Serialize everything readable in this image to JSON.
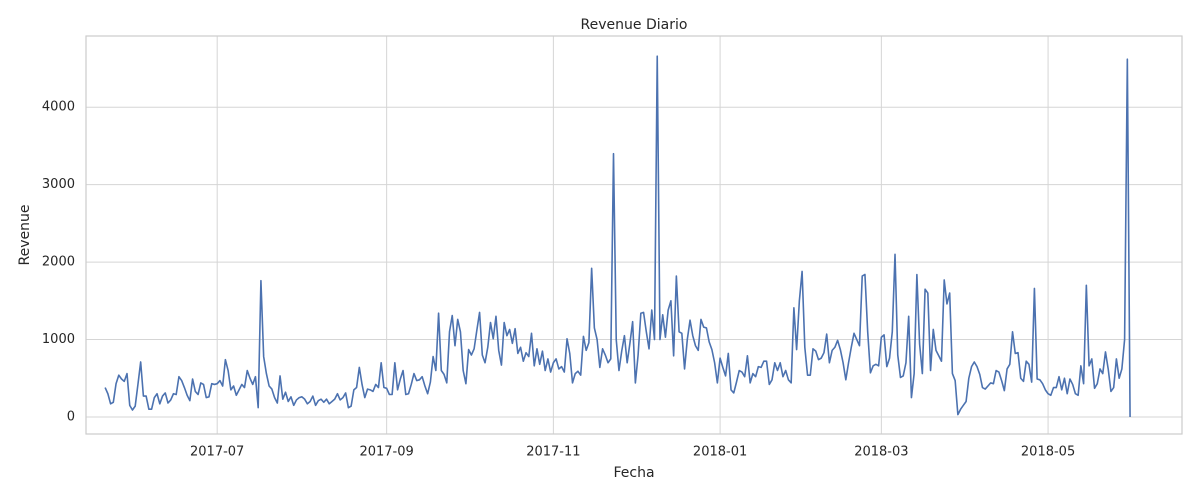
{
  "chart_data": {
    "type": "line",
    "title": "Revenue Diario",
    "x_label": "Fecha",
    "y_label": "Revenue",
    "x": [
      "2017-05-21",
      "2017-05-22",
      "2017-05-23",
      "2017-05-24",
      "2017-05-25",
      "2017-05-26",
      "2017-05-27",
      "2017-05-28",
      "2017-05-29",
      "2017-05-30",
      "2017-05-31",
      "2017-06-01",
      "2017-06-02",
      "2017-06-03",
      "2017-06-04",
      "2017-06-05",
      "2017-06-06",
      "2017-06-07",
      "2017-06-08",
      "2017-06-09",
      "2017-06-10",
      "2017-06-11",
      "2017-06-12",
      "2017-06-13",
      "2017-06-14",
      "2017-06-15",
      "2017-06-16",
      "2017-06-17",
      "2017-06-18",
      "2017-06-19",
      "2017-06-20",
      "2017-06-21",
      "2017-06-22",
      "2017-06-23",
      "2017-06-24",
      "2017-06-25",
      "2017-06-26",
      "2017-06-27",
      "2017-06-28",
      "2017-06-29",
      "2017-06-30",
      "2017-07-01",
      "2017-07-02",
      "2017-07-03",
      "2017-07-04",
      "2017-07-05",
      "2017-07-06",
      "2017-07-07",
      "2017-07-08",
      "2017-07-09",
      "2017-07-10",
      "2017-07-11",
      "2017-07-12",
      "2017-07-13",
      "2017-07-14",
      "2017-07-15",
      "2017-07-16",
      "2017-07-17",
      "2017-07-18",
      "2017-07-19",
      "2017-07-20",
      "2017-07-21",
      "2017-07-22",
      "2017-07-23",
      "2017-07-24",
      "2017-07-25",
      "2017-07-26",
      "2017-07-27",
      "2017-07-28",
      "2017-07-29",
      "2017-07-30",
      "2017-07-31",
      "2017-08-01",
      "2017-08-02",
      "2017-08-03",
      "2017-08-04",
      "2017-08-05",
      "2017-08-06",
      "2017-08-07",
      "2017-08-08",
      "2017-08-09",
      "2017-08-10",
      "2017-08-11",
      "2017-08-12",
      "2017-08-13",
      "2017-08-14",
      "2017-08-15",
      "2017-08-16",
      "2017-08-17",
      "2017-08-18",
      "2017-08-19",
      "2017-08-20",
      "2017-08-21",
      "2017-08-22",
      "2017-08-23",
      "2017-08-24",
      "2017-08-25",
      "2017-08-26",
      "2017-08-27",
      "2017-08-28",
      "2017-08-29",
      "2017-08-30",
      "2017-08-31",
      "2017-09-01",
      "2017-09-02",
      "2017-09-03",
      "2017-09-04",
      "2017-09-05",
      "2017-09-06",
      "2017-09-07",
      "2017-09-08",
      "2017-09-09",
      "2017-09-10",
      "2017-09-11",
      "2017-09-12",
      "2017-09-13",
      "2017-09-14",
      "2017-09-15",
      "2017-09-16",
      "2017-09-17",
      "2017-09-18",
      "2017-09-19",
      "2017-09-20",
      "2017-09-21",
      "2017-09-22",
      "2017-09-23",
      "2017-09-24",
      "2017-09-25",
      "2017-09-26",
      "2017-09-27",
      "2017-09-28",
      "2017-09-29",
      "2017-09-30",
      "2017-10-01",
      "2017-10-02",
      "2017-10-03",
      "2017-10-04",
      "2017-10-05",
      "2017-10-06",
      "2017-10-07",
      "2017-10-08",
      "2017-10-09",
      "2017-10-10",
      "2017-10-11",
      "2017-10-12",
      "2017-10-13",
      "2017-10-14",
      "2017-10-15",
      "2017-10-16",
      "2017-10-17",
      "2017-10-18",
      "2017-10-19",
      "2017-10-20",
      "2017-10-21",
      "2017-10-22",
      "2017-10-23",
      "2017-10-24",
      "2017-10-25",
      "2017-10-26",
      "2017-10-27",
      "2017-10-28",
      "2017-10-29",
      "2017-10-30",
      "2017-10-31",
      "2017-11-01",
      "2017-11-02",
      "2017-11-03",
      "2017-11-04",
      "2017-11-05",
      "2017-11-06",
      "2017-11-07",
      "2017-11-08",
      "2017-11-09",
      "2017-11-10",
      "2017-11-11",
      "2017-11-12",
      "2017-11-13",
      "2017-11-14",
      "2017-11-15",
      "2017-11-16",
      "2017-11-17",
      "2017-11-18",
      "2017-11-19",
      "2017-11-20",
      "2017-11-21",
      "2017-11-22",
      "2017-11-23",
      "2017-11-24",
      "2017-11-25",
      "2017-11-26",
      "2017-11-27",
      "2017-11-28",
      "2017-11-29",
      "2017-11-30",
      "2017-12-01",
      "2017-12-02",
      "2017-12-03",
      "2017-12-04",
      "2017-12-05",
      "2017-12-06",
      "2017-12-07",
      "2017-12-08",
      "2017-12-09",
      "2017-12-10",
      "2017-12-11",
      "2017-12-12",
      "2017-12-13",
      "2017-12-14",
      "2017-12-15",
      "2017-12-16",
      "2017-12-17",
      "2017-12-18",
      "2017-12-19",
      "2017-12-20",
      "2017-12-21",
      "2017-12-22",
      "2017-12-23",
      "2017-12-24",
      "2017-12-25",
      "2017-12-26",
      "2017-12-27",
      "2017-12-28",
      "2017-12-29",
      "2017-12-30",
      "2017-12-31",
      "2018-01-01",
      "2018-01-02",
      "2018-01-03",
      "2018-01-04",
      "2018-01-05",
      "2018-01-06",
      "2018-01-07",
      "2018-01-08",
      "2018-01-09",
      "2018-01-10",
      "2018-01-11",
      "2018-01-12",
      "2018-01-13",
      "2018-01-14",
      "2018-01-15",
      "2018-01-16",
      "2018-01-17",
      "2018-01-18",
      "2018-01-19",
      "2018-01-20",
      "2018-01-21",
      "2018-01-22",
      "2018-01-23",
      "2018-01-24",
      "2018-01-25",
      "2018-01-26",
      "2018-01-27",
      "2018-01-28",
      "2018-01-29",
      "2018-01-30",
      "2018-01-31",
      "2018-02-01",
      "2018-02-02",
      "2018-02-03",
      "2018-02-04",
      "2018-02-05",
      "2018-02-06",
      "2018-02-07",
      "2018-02-08",
      "2018-02-09",
      "2018-02-10",
      "2018-02-11",
      "2018-02-12",
      "2018-02-13",
      "2018-02-14",
      "2018-02-15",
      "2018-02-16",
      "2018-02-17",
      "2018-02-18",
      "2018-02-19",
      "2018-02-20",
      "2018-02-21",
      "2018-02-22",
      "2018-02-23",
      "2018-02-24",
      "2018-02-25",
      "2018-02-26",
      "2018-02-27",
      "2018-02-28",
      "2018-03-01",
      "2018-03-02",
      "2018-03-03",
      "2018-03-04",
      "2018-03-05",
      "2018-03-06",
      "2018-03-07",
      "2018-03-08",
      "2018-03-09",
      "2018-03-10",
      "2018-03-11",
      "2018-03-12",
      "2018-03-13",
      "2018-03-14",
      "2018-03-15",
      "2018-03-16",
      "2018-03-17",
      "2018-03-18",
      "2018-03-19",
      "2018-03-20",
      "2018-03-21",
      "2018-03-22",
      "2018-03-23",
      "2018-03-24",
      "2018-03-25",
      "2018-03-26",
      "2018-03-27",
      "2018-03-28",
      "2018-03-29",
      "2018-03-30",
      "2018-03-31",
      "2018-04-01",
      "2018-04-02",
      "2018-04-03",
      "2018-04-04",
      "2018-04-05",
      "2018-04-06",
      "2018-04-07",
      "2018-04-08",
      "2018-04-09",
      "2018-04-10",
      "2018-04-11",
      "2018-04-12",
      "2018-04-13",
      "2018-04-14",
      "2018-04-15",
      "2018-04-16",
      "2018-04-17",
      "2018-04-18",
      "2018-04-19",
      "2018-04-20",
      "2018-04-21",
      "2018-04-22",
      "2018-04-23",
      "2018-04-24",
      "2018-04-25",
      "2018-04-26",
      "2018-04-27",
      "2018-04-28",
      "2018-04-29",
      "2018-04-30",
      "2018-05-01",
      "2018-05-02",
      "2018-05-03",
      "2018-05-04",
      "2018-05-05",
      "2018-05-06",
      "2018-05-07",
      "2018-05-08",
      "2018-05-09",
      "2018-05-10",
      "2018-05-11",
      "2018-05-12",
      "2018-05-13",
      "2018-05-14",
      "2018-05-15",
      "2018-05-16",
      "2018-05-17",
      "2018-05-18",
      "2018-05-19",
      "2018-05-20",
      "2018-05-21",
      "2018-05-22",
      "2018-05-23",
      "2018-05-24",
      "2018-05-25",
      "2018-05-26",
      "2018-05-27",
      "2018-05-28",
      "2018-05-29",
      "2018-05-30",
      "2018-05-31"
    ],
    "series": [
      {
        "color": "#4c72b0",
        "values": [
          380,
          300,
          170,
          190,
          430,
          540,
          490,
          460,
          560,
          150,
          90,
          140,
          420,
          710,
          270,
          270,
          100,
          100,
          250,
          300,
          170,
          270,
          310,
          180,
          220,
          300,
          290,
          520,
          470,
          380,
          280,
          210,
          490,
          330,
          290,
          440,
          420,
          250,
          260,
          430,
          420,
          430,
          470,
          400,
          740,
          600,
          350,
          400,
          280,
          350,
          420,
          380,
          600,
          500,
          420,
          520,
          120,
          1760,
          780,
          560,
          400,
          360,
          250,
          180,
          530,
          230,
          320,
          200,
          260,
          150,
          220,
          250,
          260,
          230,
          170,
          200,
          270,
          150,
          210,
          230,
          190,
          230,
          170,
          200,
          230,
          300,
          220,
          250,
          310,
          120,
          140,
          350,
          380,
          640,
          420,
          250,
          360,
          350,
          330,
          420,
          380,
          700,
          380,
          370,
          290,
          290,
          700,
          350,
          490,
          600,
          290,
          300,
          420,
          560,
          470,
          480,
          520,
          400,
          300,
          450,
          780,
          600,
          1340,
          600,
          550,
          440,
          1100,
          1310,
          920,
          1260,
          1100,
          600,
          430,
          870,
          800,
          880,
          1120,
          1350,
          800,
          700,
          900,
          1220,
          1010,
          1300,
          860,
          670,
          1220,
          1050,
          1130,
          950,
          1140,
          820,
          900,
          720,
          830,
          780,
          1080,
          660,
          880,
          680,
          850,
          600,
          750,
          580,
          700,
          750,
          620,
          650,
          580,
          1010,
          820,
          440,
          560,
          590,
          540,
          1040,
          860,
          960,
          1920,
          1150,
          1000,
          640,
          880,
          800,
          700,
          750,
          3400,
          1000,
          600,
          850,
          1050,
          700,
          950,
          1230,
          440,
          800,
          1340,
          1350,
          1100,
          880,
          1380,
          1000,
          4660,
          1000,
          1320,
          1030,
          1380,
          1500,
          790,
          1820,
          1100,
          1080,
          620,
          1000,
          1250,
          1050,
          920,
          860,
          1260,
          1160,
          1150,
          970,
          870,
          700,
          440,
          760,
          640,
          530,
          820,
          350,
          310,
          450,
          600,
          580,
          520,
          790,
          440,
          560,
          520,
          650,
          640,
          720,
          720,
          420,
          480,
          700,
          600,
          700,
          520,
          600,
          480,
          440,
          1410,
          870,
          1500,
          1880,
          900,
          540,
          540,
          880,
          850,
          740,
          760,
          830,
          1070,
          700,
          860,
          900,
          990,
          870,
          700,
          480,
          700,
          900,
          1080,
          1000,
          920,
          1820,
          1840,
          1100,
          570,
          660,
          680,
          660,
          1030,
          1060,
          650,
          760,
          1100,
          2100,
          800,
          510,
          530,
          700,
          1300,
          250,
          560,
          1840,
          940,
          560,
          1650,
          1600,
          600,
          1130,
          860,
          790,
          720,
          1770,
          1460,
          1600,
          560,
          470,
          30,
          100,
          150,
          200,
          500,
          650,
          710,
          650,
          550,
          380,
          360,
          400,
          440,
          430,
          600,
          580,
          470,
          340,
          620,
          680,
          1100,
          820,
          830,
          500,
          460,
          720,
          680,
          450,
          1660,
          490,
          480,
          430,
          350,
          300,
          280,
          380,
          380,
          520,
          350,
          500,
          300,
          490,
          420,
          300,
          280,
          660,
          430,
          1700,
          660,
          750,
          370,
          430,
          620,
          560,
          840,
          620,
          330,
          380,
          750,
          500,
          620,
          1000,
          4620,
          0
        ]
      }
    ],
    "xlim": [
      "2017-05-14",
      "2018-06-19"
    ],
    "xticks": [
      {
        "value": "2017-07-01",
        "label": "2017-07"
      },
      {
        "value": "2017-09-01",
        "label": "2017-09"
      },
      {
        "value": "2017-11-01",
        "label": "2017-11"
      },
      {
        "value": "2018-01-01",
        "label": "2018-01"
      },
      {
        "value": "2018-03-01",
        "label": "2018-03"
      },
      {
        "value": "2018-05-01",
        "label": "2018-05"
      }
    ],
    "ylim": [
      -220,
      4920
    ],
    "yticks": [
      0,
      1000,
      2000,
      3000,
      4000
    ],
    "grid": true
  }
}
